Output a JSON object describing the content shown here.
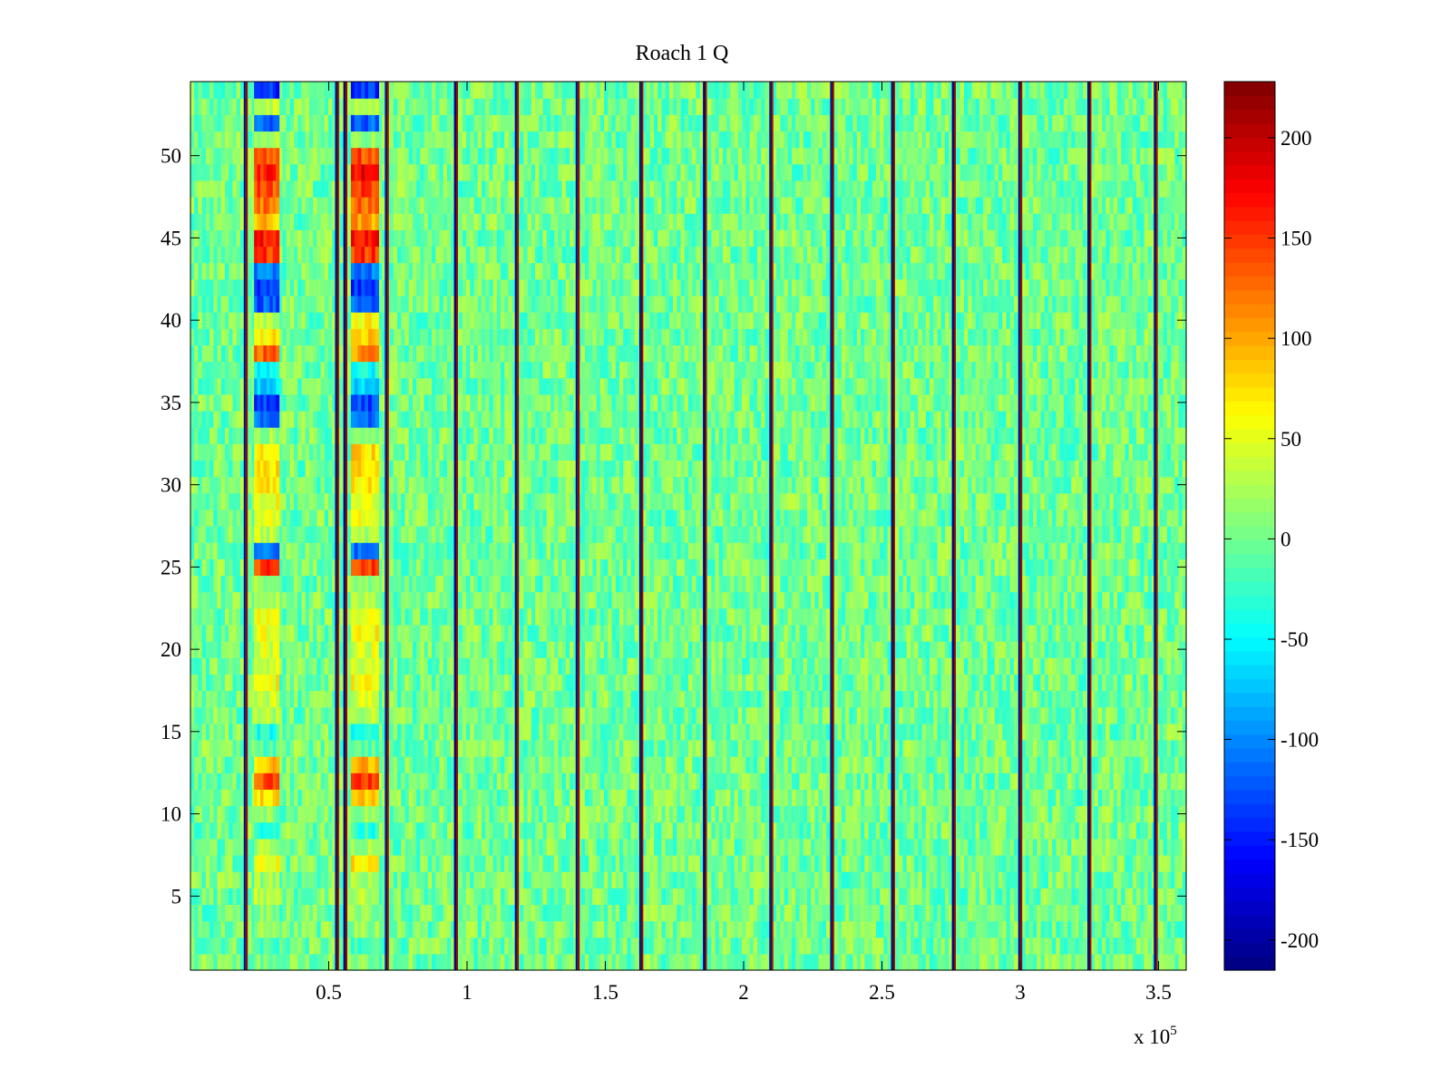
{
  "chart_data": {
    "type": "heatmap",
    "title": "Roach 1 Q",
    "xlabel": "",
    "ylabel": "",
    "x_multiplier_base": "x 10",
    "x_multiplier_exp": "5",
    "xlim": [
      0,
      360000
    ],
    "ylim": [
      0.5,
      54.5
    ],
    "rows": 54,
    "x_ticks": [
      0.5,
      1,
      1.5,
      2,
      2.5,
      3,
      3.5
    ],
    "x_tick_labels": [
      "0.5",
      "1",
      "1.5",
      "2",
      "2.5",
      "3",
      "3.5"
    ],
    "y_ticks": [
      5,
      10,
      15,
      20,
      25,
      30,
      35,
      40,
      45,
      50
    ],
    "y_tick_labels": [
      "5",
      "10",
      "15",
      "20",
      "25",
      "30",
      "35",
      "40",
      "45",
      "50"
    ],
    "colorbar": {
      "colormap": "jet",
      "clim": [
        -215,
        228
      ],
      "ticks": [
        200,
        150,
        100,
        50,
        0,
        -50,
        -100,
        -150,
        -200
      ],
      "tick_labels": [
        "200",
        "150",
        "100",
        "50",
        "0",
        "-50",
        "-100",
        "-150",
        "-200"
      ]
    },
    "background_level": 0,
    "noise_amplitude": 22,
    "separator_lines_x": [
      20000,
      53000,
      56000,
      71000,
      96000,
      118000,
      140000,
      163000,
      186000,
      210000,
      232000,
      254000,
      276000,
      300000,
      325000,
      349000
    ],
    "event_bands": [
      {
        "x_start": 23000,
        "x_end": 32000,
        "row_values": {
          "1": 5,
          "2": -20,
          "3": 15,
          "4": 10,
          "5": 30,
          "6": 20,
          "7": 60,
          "8": 25,
          "9": -30,
          "10": 10,
          "11": 80,
          "12": 140,
          "13": 90,
          "14": -10,
          "15": -40,
          "16": 30,
          "17": 40,
          "18": 60,
          "19": 40,
          "20": 45,
          "21": 55,
          "22": 50,
          "23": 30,
          "24": 20,
          "25": 150,
          "26": -110,
          "27": 30,
          "28": 60,
          "29": 55,
          "30": 65,
          "31": 70,
          "32": 75,
          "33": 20,
          "34": -110,
          "35": -130,
          "36": -70,
          "37": -40,
          "38": 130,
          "39": 70,
          "40": 30,
          "41": -120,
          "42": -140,
          "43": -110,
          "44": 150,
          "45": 160,
          "46": 90,
          "47": 120,
          "48": 140,
          "49": 160,
          "50": 130,
          "51": 20,
          "52": -110,
          "53": 30,
          "54": -140
        }
      },
      {
        "x_start": 58000,
        "x_end": 68000,
        "row_values": {
          "1": 5,
          "2": -20,
          "3": 15,
          "4": 10,
          "5": 30,
          "6": 20,
          "7": 70,
          "8": 25,
          "9": -30,
          "10": 10,
          "11": 90,
          "12": 150,
          "13": 100,
          "14": -10,
          "15": -40,
          "16": 30,
          "17": 40,
          "18": 60,
          "19": 40,
          "20": 45,
          "21": 60,
          "22": 55,
          "23": 30,
          "24": 20,
          "25": 150,
          "26": -110,
          "27": 30,
          "28": 60,
          "29": 55,
          "30": 65,
          "31": 70,
          "32": 75,
          "33": 20,
          "34": -110,
          "35": -130,
          "36": -70,
          "37": -40,
          "38": 110,
          "39": 80,
          "40": 60,
          "41": -120,
          "42": -140,
          "43": -110,
          "44": 150,
          "45": 170,
          "46": 100,
          "47": 130,
          "48": 150,
          "49": 170,
          "50": 140,
          "51": 20,
          "52": -120,
          "53": 30,
          "54": -140
        }
      }
    ]
  }
}
